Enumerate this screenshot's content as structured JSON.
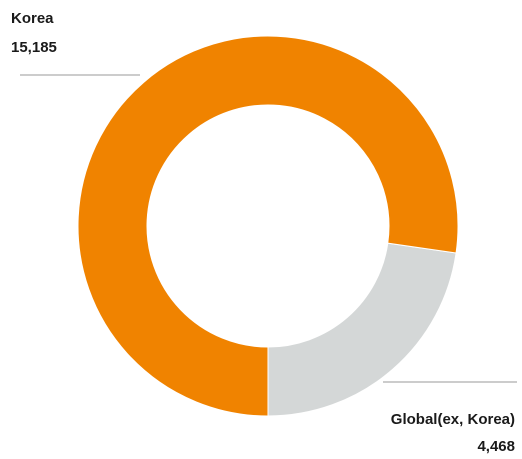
{
  "chart_data": {
    "type": "pie",
    "donut": true,
    "slices": [
      {
        "label": "Korea",
        "value_label": "15,185",
        "value": 15185,
        "color": "#F08300"
      },
      {
        "label": "Global(ex, Korea)",
        "value_label": "4,468",
        "value": 4468,
        "color": "#D4D7D7"
      }
    ]
  }
}
